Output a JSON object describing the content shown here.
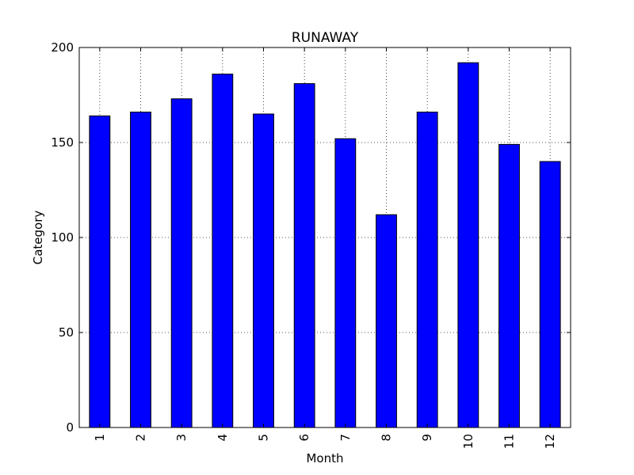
{
  "chart_data": {
    "type": "bar",
    "title": "RUNAWAY",
    "xlabel": "Month",
    "ylabel": "Category",
    "categories": [
      "1",
      "2",
      "3",
      "4",
      "5",
      "6",
      "7",
      "8",
      "9",
      "10",
      "11",
      "12"
    ],
    "values": [
      164,
      166,
      173,
      186,
      165,
      181,
      152,
      112,
      166,
      192,
      149,
      140
    ],
    "ylim": [
      0,
      200
    ],
    "yticks": [
      "0",
      "50",
      "100",
      "150",
      "200"
    ],
    "grid": true,
    "colors": {
      "bar": "#0000ff",
      "edge": "#000000"
    }
  }
}
